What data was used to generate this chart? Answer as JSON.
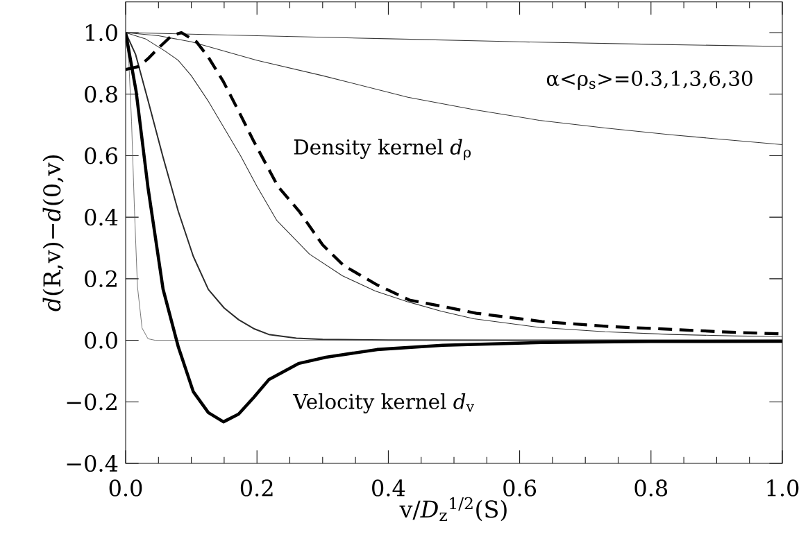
{
  "chart_data": {
    "type": "line",
    "xlabel": "v/*D*$_{z}$$^{1/2}$(S)",
    "ylabel": "*d*(R,v)−*d*(0,v)",
    "xlim": [
      0,
      1
    ],
    "ylim": [
      -0.4,
      1.1
    ],
    "xticks": [
      {
        "value": 0,
        "label": "0.0"
      },
      {
        "value": 0.2,
        "label": "0.2"
      },
      {
        "value": 0.4,
        "label": "0.4"
      },
      {
        "value": 0.6,
        "label": "0.6"
      },
      {
        "value": 0.8,
        "label": "0.8"
      },
      {
        "value": 1,
        "label": "1.0"
      }
    ],
    "yticks": [
      {
        "value": -0.4,
        "label": "−0.4"
      },
      {
        "value": -0.2,
        "label": "−0.2"
      },
      {
        "value": 0,
        "label": "0.0"
      },
      {
        "value": 0.2,
        "label": "0.2"
      },
      {
        "value": 0.4,
        "label": "0.4"
      },
      {
        "value": 0.6,
        "label": "0.6"
      },
      {
        "value": 0.8,
        "label": "0.8"
      },
      {
        "value": 1,
        "label": "1.0"
      }
    ],
    "series": [
      {
        "color": "#3a3a3a",
        "x": [
          0,
          0.2,
          0.4,
          0.6,
          0.8,
          1.0
        ],
        "values": [
          1.0,
          0.99,
          0.98,
          0.97,
          0.962,
          0.955
        ]
      },
      {
        "color": "#353535",
        "x": [
          0,
          0.05,
          0.1,
          0.2,
          0.3,
          0.43,
          0.53,
          0.63,
          0.73,
          0.83,
          1.0
        ],
        "values": [
          1.0,
          0.99,
          0.97,
          0.91,
          0.86,
          0.79,
          0.75,
          0.715,
          0.69,
          0.668,
          0.636
        ]
      },
      {
        "color": "#303030",
        "x": [
          0,
          0.03,
          0.06,
          0.08,
          0.1,
          0.125,
          0.15,
          0.175,
          0.2,
          0.23,
          0.28,
          0.33,
          0.38,
          0.43,
          0.48,
          0.53,
          0.63,
          0.73,
          0.83,
          0.93,
          1.0
        ],
        "values": [
          1.0,
          0.98,
          0.94,
          0.91,
          0.86,
          0.78,
          0.69,
          0.6,
          0.5,
          0.39,
          0.28,
          0.21,
          0.16,
          0.125,
          0.095,
          0.07,
          0.042,
          0.028,
          0.019,
          0.014,
          0.012
        ]
      },
      {
        "color": "#2b2b2b",
        "x": [
          0,
          0.015,
          0.034,
          0.057,
          0.08,
          0.103,
          0.126,
          0.15,
          0.172,
          0.195,
          0.218,
          0.26,
          0.3,
          0.4,
          0.6,
          1.0
        ],
        "values": [
          1.0,
          0.93,
          0.78,
          0.595,
          0.42,
          0.273,
          0.165,
          0.105,
          0.067,
          0.038,
          0.019,
          0.007,
          0.003,
          0.001,
          0,
          0
        ]
      },
      {
        "color": "#555555",
        "x": [
          0,
          0.005,
          0.009,
          0.0135,
          0.018,
          0.025,
          0.034,
          0.045,
          0.2,
          0.6,
          1.0
        ],
        "values": [
          1.0,
          0.9,
          0.71,
          0.42,
          0.175,
          0.04,
          0.005,
          0,
          0,
          0,
          0
        ]
      },
      {
        "color": "#000000",
        "line_style": "dashed",
        "x": [
          0,
          0.02,
          0.034,
          0.05,
          0.07,
          0.085,
          0.108,
          0.126,
          0.149,
          0.172,
          0.195,
          0.232,
          0.264,
          0.3,
          0.332,
          0.383,
          0.432,
          0.483,
          0.534,
          0.634,
          0.735,
          0.835,
          0.936,
          1.0
        ],
        "values": [
          0.88,
          0.89,
          0.915,
          0.95,
          0.99,
          1.0,
          0.97,
          0.92,
          0.84,
          0.745,
          0.647,
          0.5,
          0.42,
          0.31,
          0.243,
          0.18,
          0.131,
          0.11,
          0.088,
          0.061,
          0.045,
          0.035,
          0.025,
          0.021
        ]
      },
      {
        "color": "#000000",
        "x": [
          0,
          0.0159,
          0.034,
          0.057,
          0.08,
          0.103,
          0.126,
          0.149,
          0.172,
          0.195,
          0.218,
          0.264,
          0.305,
          0.383,
          0.483,
          0.634,
          0.8,
          1.0
        ],
        "values": [
          1.0,
          0.81,
          0.497,
          0.166,
          -0.02,
          -0.167,
          -0.235,
          -0.265,
          -0.24,
          -0.186,
          -0.128,
          -0.075,
          -0.055,
          -0.03,
          -0.016,
          -0.007,
          -0.004,
          -0.003
        ]
      }
    ],
    "annotations": [
      "Density kernel *d*$_{ρ}$",
      "Velocity kernel *d*$_{v}$",
      "α<ρ$_{s}$>=0.3,1,3,6,30"
    ]
  }
}
